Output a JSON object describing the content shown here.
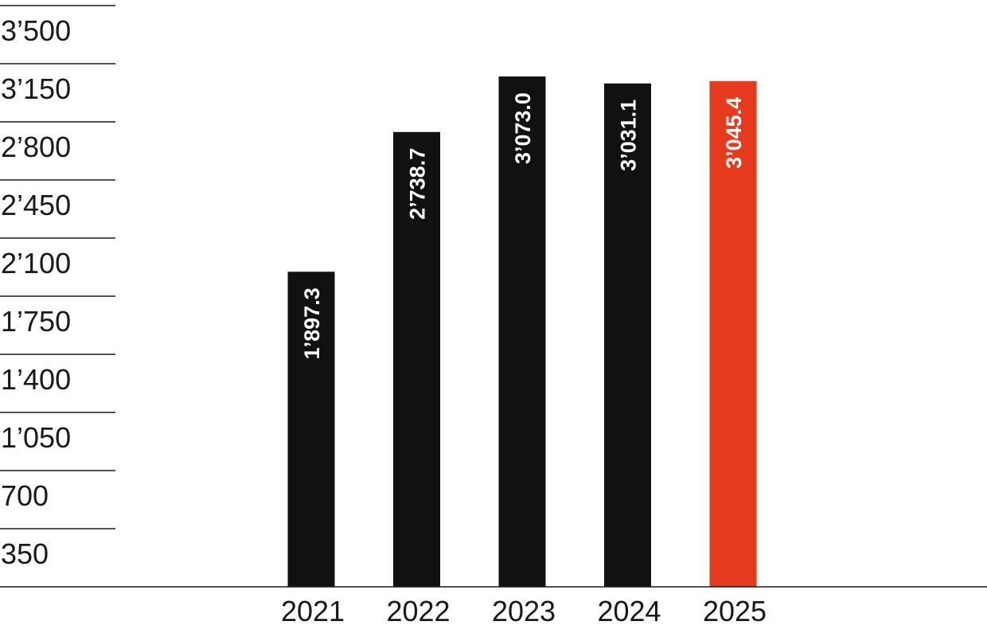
{
  "chart_data": {
    "type": "bar",
    "categories": [
      "2021",
      "2022",
      "2023",
      "2024",
      "2025"
    ],
    "values": [
      1897.3,
      2738.7,
      3073.0,
      3031.1,
      3045.4
    ],
    "value_labels": [
      "1’897.3",
      "2’738.7",
      "3’073.0",
      "3’031.1",
      "3’045.4"
    ],
    "bar_colors": [
      "#111111",
      "#111111",
      "#111111",
      "#111111",
      "#e63a1e"
    ],
    "ylim": [
      0,
      3500
    ],
    "y_ticks": [
      350,
      700,
      1050,
      1400,
      1750,
      2100,
      2450,
      2800,
      3150,
      3500
    ],
    "y_tick_labels": [
      "350",
      "700",
      "1’050",
      "1’400",
      "1’750",
      "2’100",
      "2’450",
      "2’800",
      "3’150",
      "3’500"
    ],
    "grid": "short lines above each tick label on the left",
    "legend": "none"
  }
}
